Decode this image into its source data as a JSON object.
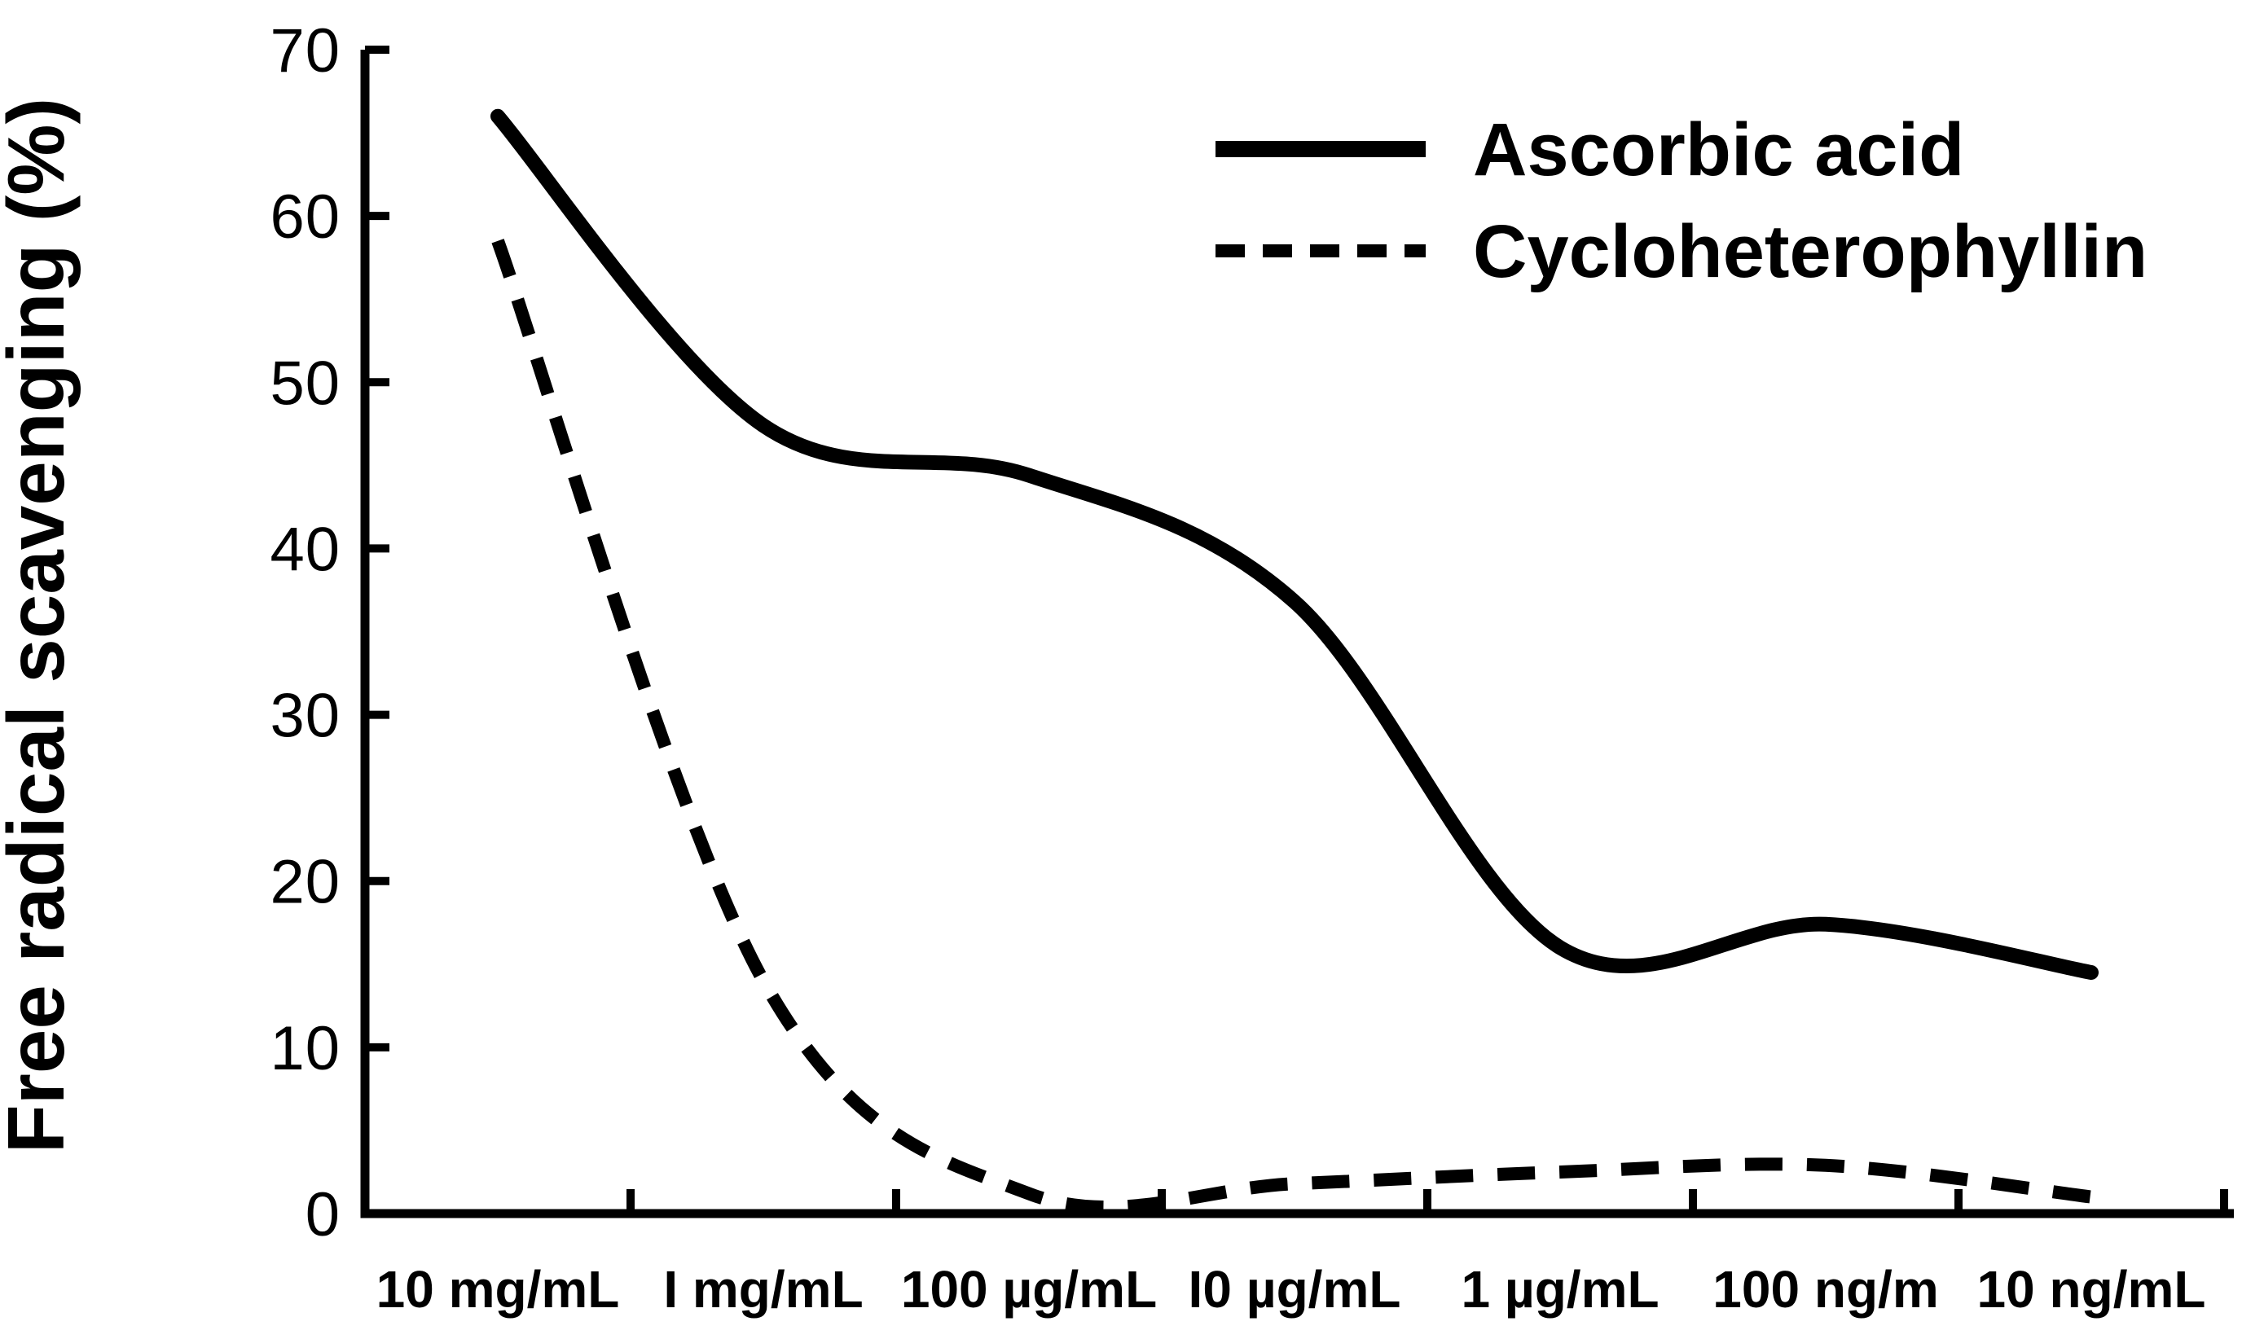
{
  "figure": {
    "background": "#ffffff",
    "ink_color": "#000000"
  },
  "chart_data": {
    "type": "line",
    "title": "",
    "xlabel": "",
    "ylabel": "Free radical scavenging (%)",
    "ylim": [
      0,
      70
    ],
    "y_ticks": [
      0,
      10,
      20,
      30,
      40,
      50,
      60,
      70
    ],
    "grid": false,
    "smoothed": true,
    "legend_position": "top-right",
    "categories": [
      "10 mg/mL",
      "I mg/mL",
      "100 µg/mL",
      "I0 µg/mL",
      "1 µg/mL",
      "100 ng/m",
      "10 ng/mL"
    ],
    "series": [
      {
        "name": "Ascorbic acid",
        "line_style": "solid",
        "color": "#000000",
        "values": [
          66.0,
          47.4,
          44.4,
          36.8,
          16.0,
          17.4,
          14.5
        ]
      },
      {
        "name": "Cycloheterophyllin",
        "line_style": "dashed",
        "color": "#000000",
        "values": [
          58.5,
          14.0,
          1.2,
          1.8,
          2.5,
          2.9,
          1.0
        ]
      }
    ]
  }
}
